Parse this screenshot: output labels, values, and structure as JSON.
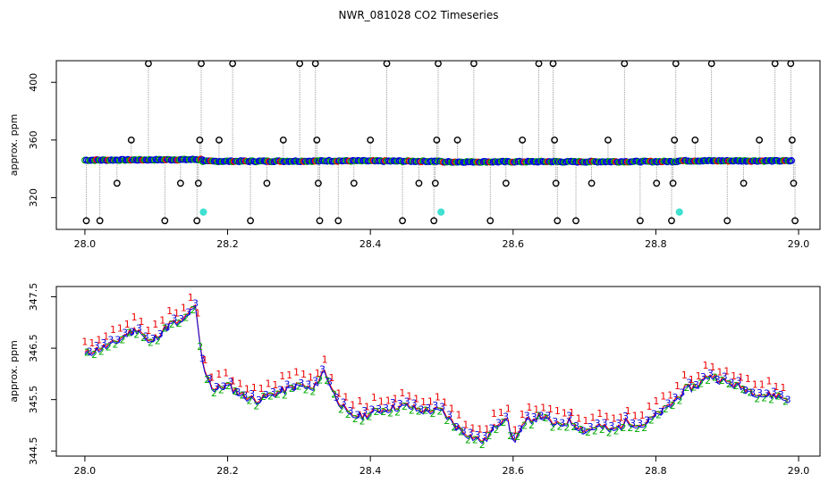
{
  "title": "NWR_081028  CO2 Timeseries",
  "chart_data": [
    {
      "type": "scatter",
      "ylabel": "approx. ppm",
      "xlabel": "",
      "xlim": [
        27.96,
        29.03
      ],
      "ylim": [
        298,
        415
      ],
      "x_ticks": [
        "28.0",
        "28.2",
        "28.4",
        "28.6",
        "28.8",
        "29.0"
      ],
      "y_ticks": [
        "320",
        "360",
        "400"
      ],
      "grid": false,
      "baseline_series": {
        "x_start": 28.0,
        "x_end": 28.99,
        "segments": [
          {
            "x": [
              28.0,
              28.165
            ],
            "y": [
              346,
              346.5
            ]
          },
          {
            "x": [
              28.165,
              28.33
            ],
            "y": [
              345.2,
              345.4
            ]
          },
          {
            "x": [
              28.33,
              28.5
            ],
            "y": [
              345.6,
              345.2
            ]
          },
          {
            "x": [
              28.5,
              28.665
            ],
            "y": [
              344.8,
              345.0
            ]
          },
          {
            "x": [
              28.665,
              28.83
            ],
            "y": [
              344.9,
              345.1
            ]
          },
          {
            "x": [
              28.83,
              28.99
            ],
            "y": [
              345.6,
              345.5
            ]
          }
        ]
      },
      "spikes": [
        {
          "x": 28.002,
          "y": 304
        },
        {
          "x": 28.021,
          "y": 304
        },
        {
          "x": 28.045,
          "y": 330
        },
        {
          "x": 28.065,
          "y": 360
        },
        {
          "x": 28.089,
          "y": 413
        },
        {
          "x": 28.112,
          "y": 304
        },
        {
          "x": 28.134,
          "y": 330
        },
        {
          "x": 28.157,
          "y": 304
        },
        {
          "x": 28.159,
          "y": 330
        },
        {
          "x": 28.161,
          "y": 360
        },
        {
          "x": 28.163,
          "y": 413
        },
        {
          "x": 28.188,
          "y": 360
        },
        {
          "x": 28.207,
          "y": 413
        },
        {
          "x": 28.232,
          "y": 304
        },
        {
          "x": 28.255,
          "y": 330
        },
        {
          "x": 28.278,
          "y": 360
        },
        {
          "x": 28.301,
          "y": 413
        },
        {
          "x": 28.323,
          "y": 413
        },
        {
          "x": 28.325,
          "y": 360
        },
        {
          "x": 28.327,
          "y": 330
        },
        {
          "x": 28.329,
          "y": 304
        },
        {
          "x": 28.355,
          "y": 304
        },
        {
          "x": 28.377,
          "y": 330
        },
        {
          "x": 28.4,
          "y": 360
        },
        {
          "x": 28.423,
          "y": 413
        },
        {
          "x": 28.445,
          "y": 304
        },
        {
          "x": 28.468,
          "y": 330
        },
        {
          "x": 28.489,
          "y": 304
        },
        {
          "x": 28.491,
          "y": 330
        },
        {
          "x": 28.493,
          "y": 360
        },
        {
          "x": 28.495,
          "y": 413
        },
        {
          "x": 28.522,
          "y": 360
        },
        {
          "x": 28.545,
          "y": 413
        },
        {
          "x": 28.568,
          "y": 304
        },
        {
          "x": 28.59,
          "y": 330
        },
        {
          "x": 28.613,
          "y": 360
        },
        {
          "x": 28.636,
          "y": 413
        },
        {
          "x": 28.656,
          "y": 413
        },
        {
          "x": 28.658,
          "y": 360
        },
        {
          "x": 28.66,
          "y": 330
        },
        {
          "x": 28.662,
          "y": 304
        },
        {
          "x": 28.688,
          "y": 304
        },
        {
          "x": 28.71,
          "y": 330
        },
        {
          "x": 28.733,
          "y": 360
        },
        {
          "x": 28.756,
          "y": 413
        },
        {
          "x": 28.778,
          "y": 304
        },
        {
          "x": 28.801,
          "y": 330
        },
        {
          "x": 28.822,
          "y": 304
        },
        {
          "x": 28.824,
          "y": 330
        },
        {
          "x": 28.826,
          "y": 360
        },
        {
          "x": 28.828,
          "y": 413
        },
        {
          "x": 28.855,
          "y": 360
        },
        {
          "x": 28.878,
          "y": 413
        },
        {
          "x": 28.9,
          "y": 304
        },
        {
          "x": 28.923,
          "y": 330
        },
        {
          "x": 28.945,
          "y": 360
        },
        {
          "x": 28.967,
          "y": 413
        },
        {
          "x": 28.989,
          "y": 413
        },
        {
          "x": 28.991,
          "y": 360
        },
        {
          "x": 28.993,
          "y": 330
        },
        {
          "x": 28.995,
          "y": 304
        }
      ],
      "cyan_points": [
        {
          "x": 28.166,
          "y": 310
        },
        {
          "x": 28.499,
          "y": 310
        },
        {
          "x": 28.833,
          "y": 310
        }
      ]
    },
    {
      "type": "line",
      "ylabel": "approx. ppm",
      "xlabel": "",
      "xlim": [
        27.96,
        29.03
      ],
      "ylim": [
        344.4,
        347.7
      ],
      "x_ticks": [
        "28.0",
        "28.2",
        "28.4",
        "28.6",
        "28.8",
        "29.0"
      ],
      "y_ticks": [
        "344.5",
        "345.5",
        "346.5",
        "347.5"
      ],
      "grid": false,
      "marker_labels": [
        "1",
        "2",
        "3"
      ],
      "series_points": [
        [
          28.0,
          346.4
        ],
        [
          28.02,
          346.5
        ],
        [
          28.04,
          346.6
        ],
        [
          28.06,
          346.8
        ],
        [
          28.075,
          346.9
        ],
        [
          28.09,
          346.6
        ],
        [
          28.105,
          346.8
        ],
        [
          28.12,
          347.0
        ],
        [
          28.135,
          347.0
        ],
        [
          28.145,
          347.2
        ],
        [
          28.155,
          347.3
        ],
        [
          28.165,
          346.2
        ],
        [
          28.18,
          345.7
        ],
        [
          28.2,
          345.8
        ],
        [
          28.22,
          345.6
        ],
        [
          28.24,
          345.5
        ],
        [
          28.26,
          345.6
        ],
        [
          28.28,
          345.7
        ],
        [
          28.3,
          345.8
        ],
        [
          28.32,
          345.7
        ],
        [
          28.335,
          346.1
        ],
        [
          28.35,
          345.6
        ],
        [
          28.37,
          345.2
        ],
        [
          28.39,
          345.2
        ],
        [
          28.41,
          345.3
        ],
        [
          28.43,
          345.35
        ],
        [
          28.45,
          345.4
        ],
        [
          28.47,
          345.3
        ],
        [
          28.49,
          345.3
        ],
        [
          28.5,
          345.3
        ],
        [
          28.52,
          345.0
        ],
        [
          28.54,
          344.8
        ],
        [
          28.56,
          344.7
        ],
        [
          28.575,
          345.0
        ],
        [
          28.59,
          345.2
        ],
        [
          28.6,
          344.7
        ],
        [
          28.62,
          345.1
        ],
        [
          28.64,
          345.2
        ],
        [
          28.66,
          345.0
        ],
        [
          28.68,
          345.1
        ],
        [
          28.7,
          344.9
        ],
        [
          28.72,
          345.0
        ],
        [
          28.74,
          344.9
        ],
        [
          28.76,
          345.1
        ],
        [
          28.78,
          345.0
        ],
        [
          28.8,
          345.2
        ],
        [
          28.82,
          345.4
        ],
        [
          28.84,
          345.7
        ],
        [
          28.86,
          345.8
        ],
        [
          28.875,
          346.0
        ],
        [
          28.89,
          345.9
        ],
        [
          28.91,
          345.8
        ],
        [
          28.93,
          345.7
        ],
        [
          28.95,
          345.6
        ],
        [
          28.97,
          345.6
        ],
        [
          28.985,
          345.5
        ]
      ]
    }
  ],
  "colors": {
    "black": "#000000",
    "blue": "#0000dd",
    "green": "#00aa00",
    "red": "#ee0000",
    "cyan": "#40e0d0",
    "grey": "#999999"
  }
}
